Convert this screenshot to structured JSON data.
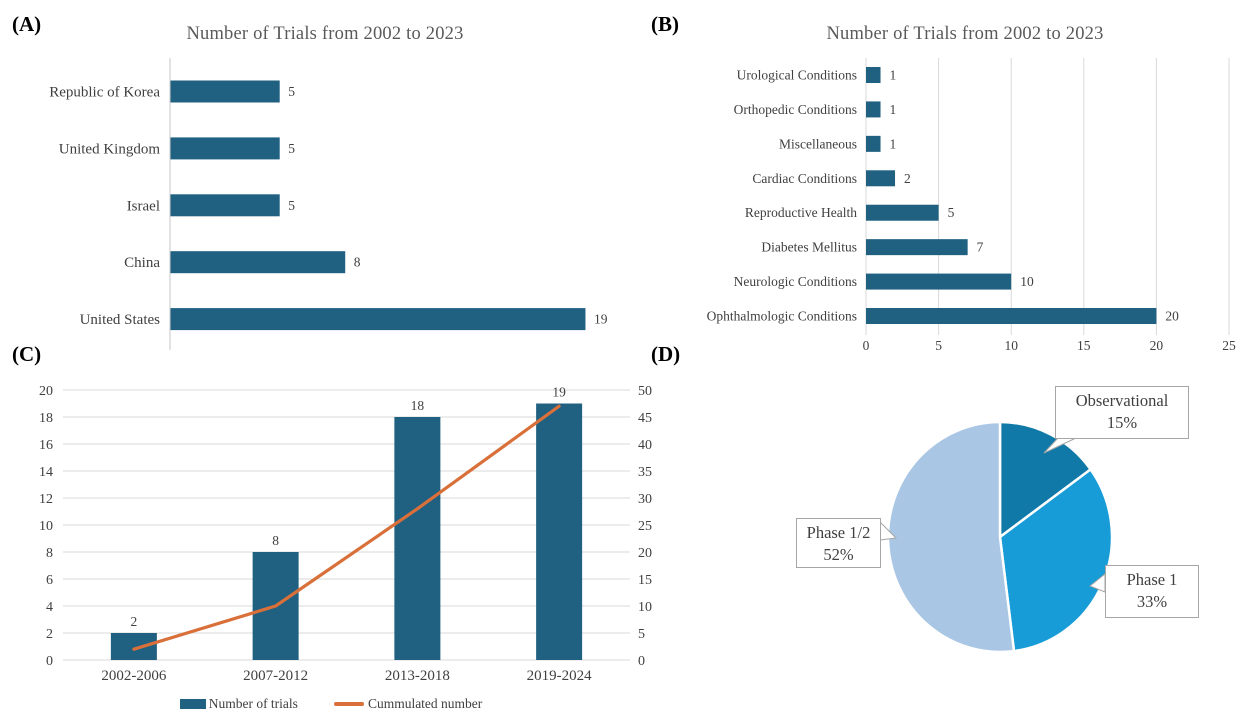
{
  "figure": {
    "panels": [
      {
        "id": "A",
        "label": "(A)"
      },
      {
        "id": "B",
        "label": "(B)"
      },
      {
        "id": "C",
        "label": "(C)"
      },
      {
        "id": "D",
        "label": "(D)"
      }
    ]
  },
  "colors": {
    "bar": "#206080",
    "line": "#d9703a",
    "grid": "#d9d9d9",
    "axis": "#d0d0d0",
    "title_text": "#595959",
    "label_text": "#404040",
    "pie_observational": "#1179a8",
    "pie_phase1": "#189cd8",
    "pie_phase12": "#a9c7e4"
  },
  "chart_data": [
    {
      "panel": "A",
      "type": "bar",
      "orientation": "horizontal",
      "title": "Number of Trials from 2002 to 2023",
      "categories": [
        "Republic of Korea",
        "United Kingdom",
        "Israel",
        "China",
        "United States"
      ],
      "values": [
        5,
        5,
        5,
        8,
        19
      ],
      "xlim": [
        0,
        19
      ],
      "grid": false,
      "bar_color": "#206080",
      "value_labels": true
    },
    {
      "panel": "B",
      "type": "bar",
      "orientation": "horizontal",
      "title": "Number of Trials from 2002 to 2023",
      "categories": [
        "Urological Conditions",
        "Orthopedic Conditions",
        "Miscellaneous",
        "Cardiac Conditions",
        "Reproductive Health",
        "Diabetes Mellitus",
        "Neurologic Conditions",
        "Ophthalmologic Conditions"
      ],
      "values": [
        1,
        1,
        1,
        2,
        5,
        7,
        10,
        20
      ],
      "xlim": [
        0,
        25
      ],
      "xticks": [
        0,
        5,
        10,
        15,
        20,
        25
      ],
      "grid": true,
      "bar_color": "#206080",
      "value_labels": true
    },
    {
      "panel": "C",
      "type": "combo-bar-line",
      "title": "",
      "categories": [
        "2002-2006",
        "2007-2012",
        "2013-2018",
        "2019-2024"
      ],
      "series": [
        {
          "name": "Number of trials",
          "type": "bar",
          "axis": "left",
          "values": [
            2,
            8,
            18,
            19
          ],
          "color": "#206080"
        },
        {
          "name": "Cummulated number",
          "type": "line",
          "axis": "right",
          "values": [
            2,
            10,
            28,
            47
          ],
          "color": "#d9703a"
        }
      ],
      "ylim_left": [
        0,
        20
      ],
      "yticks_left": [
        0,
        2,
        4,
        6,
        8,
        10,
        12,
        14,
        16,
        18,
        20
      ],
      "ylim_right": [
        0,
        50
      ],
      "yticks_right": [
        0,
        5,
        10,
        15,
        20,
        25,
        30,
        35,
        40,
        45,
        50
      ],
      "grid": true,
      "legend_position": "bottom",
      "value_labels": true
    },
    {
      "panel": "D",
      "type": "pie",
      "start_angle_deg": 0,
      "direction": "clockwise",
      "slices": [
        {
          "label": "Observational",
          "pct": 15,
          "pct_label": "15%",
          "color": "#1179a8"
        },
        {
          "label": "Phase 1",
          "pct": 33,
          "pct_label": "33%",
          "color": "#189cd8"
        },
        {
          "label": "Phase 1/2",
          "pct": 52,
          "pct_label": "52%",
          "color": "#a9c7e4"
        }
      ]
    }
  ]
}
